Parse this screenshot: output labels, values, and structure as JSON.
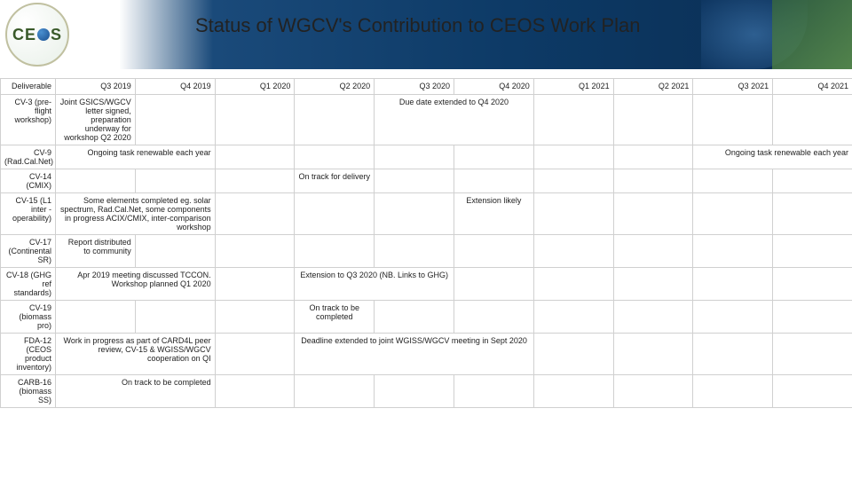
{
  "header": {
    "title": "Status of WGCV's Contribution to CEOS Work Plan",
    "logo_left": "CE",
    "logo_right": "S"
  },
  "columns": [
    "Deliverable",
    "Q3 2019",
    "Q4 2019",
    "Q1 2020",
    "Q2 2020",
    "Q3 2020",
    "Q4 2020",
    "Q1 2021",
    "Q2 2021",
    "Q3 2021",
    "Q4 2021"
  ],
  "rows": {
    "cv3": {
      "label": "CV-3 (pre-flight workshop)",
      "c1": "Joint GSICS/WGCV letter signed, preparation underway for workshop Q2 2020",
      "note": "Due date extended to Q4 2020"
    },
    "cv9": {
      "label": "CV-9 (Rad.Cal.Net)",
      "c1": "Ongoing task renewable each year",
      "note": "Ongoing task renewable each year"
    },
    "cv14": {
      "label": "CV-14 (CMIX)",
      "note": "On track for delivery"
    },
    "cv15": {
      "label": "CV-15 (L1 inter -operability)",
      "c1": "Some elements completed eg. solar spectrum, Rad.Cal.Net, some components in progress ACIX/CMIX, inter-comparison workshop",
      "note": "Extension likely"
    },
    "cv17": {
      "label": "CV-17 (Continental SR)",
      "c1": "Report distributed to community"
    },
    "cv18": {
      "label": "CV-18 (GHG ref standards)",
      "c1": "Apr 2019 meeting discussed TCCON. Workshop planned Q1 2020",
      "note": "Extension to Q3 2020 (NB. Links to GHG)"
    },
    "cv19": {
      "label": "CV-19 (biomass pro)",
      "note": "On track to be completed"
    },
    "fda12": {
      "label": "FDA-12 (CEOS product inventory)",
      "c1": "Work in progress as part of CARD4L peer review, CV-15 & WGISS/WGCV cooperation on QI",
      "note": "Deadline extended to joint WGISS/WGCV meeting in Sept 2020"
    },
    "carb16": {
      "label": "CARB-16 (biomass SS)",
      "c1": "On track to be completed"
    }
  }
}
